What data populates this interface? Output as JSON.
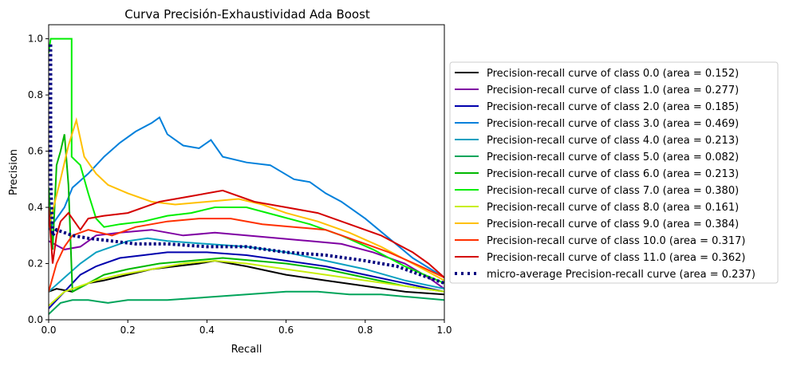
{
  "chart_data": {
    "type": "line",
    "title": "Curva Precisión-Exhaustividad Ada Boost",
    "xlabel": "Recall",
    "ylabel": "Precision",
    "xlim": [
      0.0,
      1.0
    ],
    "ylim": [
      0.0,
      1.05
    ],
    "xticks": [
      "0.0",
      "0.2",
      "0.4",
      "0.6",
      "0.8",
      "1.0"
    ],
    "yticks": [
      "0.0",
      "0.2",
      "0.4",
      "0.6",
      "0.8",
      "1.0"
    ],
    "grid": false,
    "legend_position": "center-right-outside",
    "series": [
      {
        "name": "Precision-recall curve of class 0.0 (area = 0.152)",
        "color": "#000000",
        "dashed": false,
        "points": [
          [
            0,
            0.1
          ],
          [
            0.02,
            0.11
          ],
          [
            0.06,
            0.1
          ],
          [
            0.1,
            0.13
          ],
          [
            0.14,
            0.14
          ],
          [
            0.2,
            0.16
          ],
          [
            0.26,
            0.18
          ],
          [
            0.32,
            0.19
          ],
          [
            0.38,
            0.2
          ],
          [
            0.42,
            0.21
          ],
          [
            0.5,
            0.19
          ],
          [
            0.6,
            0.16
          ],
          [
            0.7,
            0.14
          ],
          [
            0.8,
            0.12
          ],
          [
            0.9,
            0.1
          ],
          [
            1.0,
            0.09
          ]
        ]
      },
      {
        "name": "Precision-recall curve of class 1.0 (area = 0.277)",
        "color": "#7f00a3",
        "dashed": false,
        "points": [
          [
            0,
            0.28
          ],
          [
            0.04,
            0.25
          ],
          [
            0.08,
            0.26
          ],
          [
            0.12,
            0.3
          ],
          [
            0.18,
            0.31
          ],
          [
            0.26,
            0.32
          ],
          [
            0.34,
            0.3
          ],
          [
            0.42,
            0.31
          ],
          [
            0.5,
            0.3
          ],
          [
            0.58,
            0.29
          ],
          [
            0.66,
            0.28
          ],
          [
            0.74,
            0.27
          ],
          [
            0.82,
            0.24
          ],
          [
            0.9,
            0.2
          ],
          [
            0.96,
            0.15
          ],
          [
            1.0,
            0.11
          ]
        ]
      },
      {
        "name": "Precision-recall curve of class 2.0 (area = 0.185)",
        "color": "#0000ad",
        "dashed": false,
        "points": [
          [
            0,
            0.04
          ],
          [
            0.04,
            0.1
          ],
          [
            0.08,
            0.16
          ],
          [
            0.12,
            0.19
          ],
          [
            0.18,
            0.22
          ],
          [
            0.24,
            0.23
          ],
          [
            0.3,
            0.24
          ],
          [
            0.4,
            0.24
          ],
          [
            0.5,
            0.23
          ],
          [
            0.6,
            0.21
          ],
          [
            0.7,
            0.19
          ],
          [
            0.8,
            0.16
          ],
          [
            0.9,
            0.13
          ],
          [
            1.0,
            0.1
          ]
        ]
      },
      {
        "name": "Precision-recall curve of class 3.0 (area = 0.469)",
        "color": "#0080db",
        "dashed": false,
        "points": [
          [
            0,
            0.32
          ],
          [
            0.04,
            0.4
          ],
          [
            0.06,
            0.47
          ],
          [
            0.1,
            0.52
          ],
          [
            0.14,
            0.58
          ],
          [
            0.18,
            0.63
          ],
          [
            0.22,
            0.67
          ],
          [
            0.26,
            0.7
          ],
          [
            0.28,
            0.72
          ],
          [
            0.3,
            0.66
          ],
          [
            0.34,
            0.62
          ],
          [
            0.38,
            0.61
          ],
          [
            0.41,
            0.64
          ],
          [
            0.44,
            0.58
          ],
          [
            0.5,
            0.56
          ],
          [
            0.56,
            0.55
          ],
          [
            0.62,
            0.5
          ],
          [
            0.66,
            0.49
          ],
          [
            0.7,
            0.45
          ],
          [
            0.74,
            0.42
          ],
          [
            0.8,
            0.36
          ],
          [
            0.86,
            0.29
          ],
          [
            0.92,
            0.22
          ],
          [
            1.0,
            0.15
          ]
        ]
      },
      {
        "name": "Precision-recall curve of class 4.0 (area = 0.213)",
        "color": "#0aa0c0",
        "dashed": false,
        "points": [
          [
            0,
            0.1
          ],
          [
            0.04,
            0.15
          ],
          [
            0.08,
            0.2
          ],
          [
            0.12,
            0.24
          ],
          [
            0.16,
            0.26
          ],
          [
            0.2,
            0.28
          ],
          [
            0.25,
            0.29
          ],
          [
            0.3,
            0.28
          ],
          [
            0.4,
            0.27
          ],
          [
            0.5,
            0.26
          ],
          [
            0.6,
            0.24
          ],
          [
            0.7,
            0.21
          ],
          [
            0.8,
            0.18
          ],
          [
            0.9,
            0.14
          ],
          [
            1.0,
            0.11
          ]
        ]
      },
      {
        "name": "Precision-recall curve of class 5.0 (area = 0.082)",
        "color": "#00a45a",
        "dashed": false,
        "points": [
          [
            0,
            0.02
          ],
          [
            0.03,
            0.06
          ],
          [
            0.06,
            0.07
          ],
          [
            0.1,
            0.07
          ],
          [
            0.15,
            0.06
          ],
          [
            0.2,
            0.07
          ],
          [
            0.3,
            0.07
          ],
          [
            0.4,
            0.08
          ],
          [
            0.5,
            0.09
          ],
          [
            0.6,
            0.1
          ],
          [
            0.68,
            0.1
          ],
          [
            0.76,
            0.09
          ],
          [
            0.84,
            0.09
          ],
          [
            0.92,
            0.08
          ],
          [
            1.0,
            0.07
          ]
        ]
      },
      {
        "name": "Precision-recall curve of class 6.0 (area = 0.213)",
        "color": "#00b800",
        "dashed": false,
        "points": [
          [
            0,
            0.47
          ],
          [
            0.01,
            0.25
          ],
          [
            0.02,
            0.55
          ],
          [
            0.03,
            0.6
          ],
          [
            0.04,
            0.66
          ],
          [
            0.05,
            0.48
          ],
          [
            0.06,
            0.1
          ],
          [
            0.1,
            0.13
          ],
          [
            0.14,
            0.16
          ],
          [
            0.2,
            0.18
          ],
          [
            0.28,
            0.2
          ],
          [
            0.36,
            0.21
          ],
          [
            0.44,
            0.22
          ],
          [
            0.52,
            0.21
          ],
          [
            0.6,
            0.2
          ],
          [
            0.7,
            0.18
          ],
          [
            0.8,
            0.15
          ],
          [
            0.9,
            0.12
          ],
          [
            1.0,
            0.1
          ]
        ]
      },
      {
        "name": "Precision-recall curve of class 7.0 (area = 0.380)",
        "color": "#00ee00",
        "dashed": false,
        "points": [
          [
            0.0,
            0.95
          ],
          [
            0.005,
            1.0
          ],
          [
            0.058,
            1.0
          ],
          [
            0.058,
            0.58
          ],
          [
            0.08,
            0.55
          ],
          [
            0.1,
            0.45
          ],
          [
            0.12,
            0.36
          ],
          [
            0.14,
            0.33
          ],
          [
            0.18,
            0.34
          ],
          [
            0.24,
            0.35
          ],
          [
            0.3,
            0.37
          ],
          [
            0.36,
            0.38
          ],
          [
            0.42,
            0.4
          ],
          [
            0.5,
            0.4
          ],
          [
            0.58,
            0.37
          ],
          [
            0.66,
            0.34
          ],
          [
            0.74,
            0.3
          ],
          [
            0.82,
            0.25
          ],
          [
            0.9,
            0.19
          ],
          [
            1.0,
            0.13
          ]
        ]
      },
      {
        "name": "Precision-recall curve of class 8.0 (area = 0.161)",
        "color": "#c8ee0a",
        "dashed": false,
        "points": [
          [
            0,
            0.05
          ],
          [
            0.04,
            0.1
          ],
          [
            0.08,
            0.12
          ],
          [
            0.12,
            0.14
          ],
          [
            0.18,
            0.16
          ],
          [
            0.26,
            0.18
          ],
          [
            0.34,
            0.2
          ],
          [
            0.42,
            0.21
          ],
          [
            0.5,
            0.2
          ],
          [
            0.6,
            0.18
          ],
          [
            0.7,
            0.16
          ],
          [
            0.8,
            0.14
          ],
          [
            0.9,
            0.12
          ],
          [
            1.0,
            0.1
          ]
        ]
      },
      {
        "name": "Precision-recall curve of class 9.0 (area = 0.384)",
        "color": "#ffc000",
        "dashed": false,
        "points": [
          [
            0,
            0.33
          ],
          [
            0.03,
            0.5
          ],
          [
            0.05,
            0.62
          ],
          [
            0.07,
            0.71
          ],
          [
            0.09,
            0.58
          ],
          [
            0.12,
            0.52
          ],
          [
            0.15,
            0.48
          ],
          [
            0.2,
            0.45
          ],
          [
            0.26,
            0.42
          ],
          [
            0.32,
            0.41
          ],
          [
            0.4,
            0.42
          ],
          [
            0.48,
            0.43
          ],
          [
            0.54,
            0.41
          ],
          [
            0.6,
            0.38
          ],
          [
            0.68,
            0.35
          ],
          [
            0.76,
            0.31
          ],
          [
            0.84,
            0.26
          ],
          [
            0.92,
            0.2
          ],
          [
            1.0,
            0.14
          ]
        ]
      },
      {
        "name": "Precision-recall curve of class 10.0 (area = 0.317)",
        "color": "#ff3000",
        "dashed": false,
        "points": [
          [
            0,
            0.1
          ],
          [
            0.02,
            0.2
          ],
          [
            0.04,
            0.26
          ],
          [
            0.06,
            0.3
          ],
          [
            0.1,
            0.32
          ],
          [
            0.16,
            0.3
          ],
          [
            0.22,
            0.33
          ],
          [
            0.3,
            0.35
          ],
          [
            0.38,
            0.36
          ],
          [
            0.46,
            0.36
          ],
          [
            0.54,
            0.34
          ],
          [
            0.62,
            0.33
          ],
          [
            0.7,
            0.32
          ],
          [
            0.78,
            0.28
          ],
          [
            0.86,
            0.24
          ],
          [
            0.94,
            0.19
          ],
          [
            1.0,
            0.15
          ]
        ]
      },
      {
        "name": "Precision-recall curve of class 11.0 (area = 0.362)",
        "color": "#d40000",
        "dashed": false,
        "points": [
          [
            0,
            0.4
          ],
          [
            0.01,
            0.2
          ],
          [
            0.02,
            0.3
          ],
          [
            0.03,
            0.35
          ],
          [
            0.05,
            0.38
          ],
          [
            0.08,
            0.32
          ],
          [
            0.1,
            0.36
          ],
          [
            0.14,
            0.37
          ],
          [
            0.2,
            0.38
          ],
          [
            0.28,
            0.42
          ],
          [
            0.36,
            0.44
          ],
          [
            0.44,
            0.46
          ],
          [
            0.52,
            0.42
          ],
          [
            0.6,
            0.4
          ],
          [
            0.68,
            0.38
          ],
          [
            0.76,
            0.34
          ],
          [
            0.84,
            0.3
          ],
          [
            0.92,
            0.24
          ],
          [
            0.96,
            0.2
          ],
          [
            1.0,
            0.15
          ]
        ]
      },
      {
        "name": "micro-average Precision-recall curve (area = 0.237)",
        "color": "#000080",
        "dashed": true,
        "points": [
          [
            0.005,
            0.98
          ],
          [
            0.005,
            0.5
          ],
          [
            0.01,
            0.3
          ],
          [
            0.02,
            0.32
          ],
          [
            0.04,
            0.31
          ],
          [
            0.06,
            0.3
          ],
          [
            0.1,
            0.29
          ],
          [
            0.16,
            0.28
          ],
          [
            0.22,
            0.27
          ],
          [
            0.3,
            0.27
          ],
          [
            0.4,
            0.26
          ],
          [
            0.5,
            0.26
          ],
          [
            0.6,
            0.24
          ],
          [
            0.7,
            0.23
          ],
          [
            0.8,
            0.21
          ],
          [
            0.88,
            0.19
          ],
          [
            0.94,
            0.16
          ],
          [
            1.0,
            0.13
          ]
        ]
      }
    ]
  }
}
